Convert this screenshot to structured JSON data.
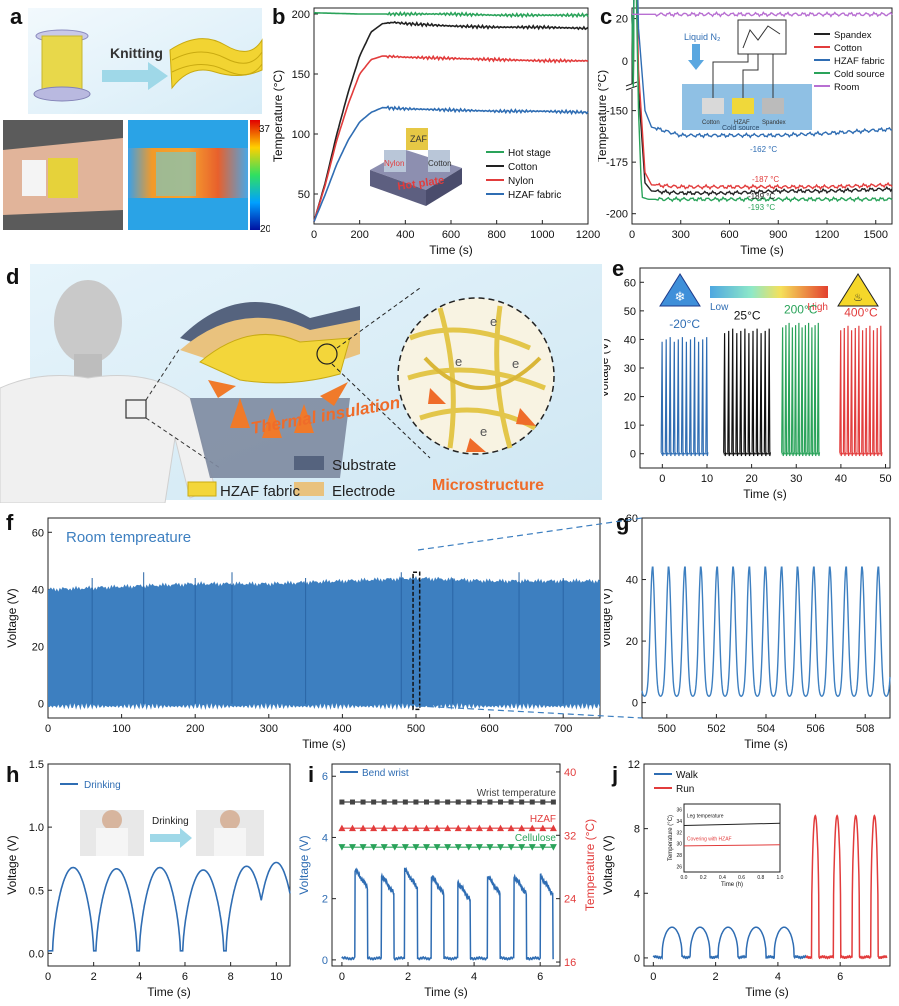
{
  "panels": {
    "a": "a",
    "b": "b",
    "c": "c",
    "d": "d",
    "e": "e",
    "f": "f",
    "g": "g",
    "h": "h",
    "i": "i",
    "j": "j"
  },
  "panel_a": {
    "arrow_label": "Knitting",
    "scale_max": "37",
    "scale_min": "20"
  },
  "panel_d": {
    "thermal_label": "Thermal  insulation",
    "substrate_label": "Substrate",
    "electrode_label": "Electrode",
    "fabric_label": "HZAF fabric",
    "micro_label": "Microstructure",
    "electron": "e"
  },
  "colors": {
    "blue": "#2f6db3",
    "black": "#222222",
    "red": "#e23c3c",
    "green": "#2aa35a",
    "purple": "#b86fd2",
    "dark_green": "#1f8a4c"
  },
  "chart_data": [
    {
      "id": "b",
      "type": "line",
      "xlabel": "Time (s)",
      "ylabel": "Temperature (°C)",
      "xlim": [
        0,
        1200
      ],
      "ylim": [
        25,
        205
      ],
      "xticks": [
        0,
        200,
        400,
        600,
        800,
        1000,
        1200
      ],
      "yticks": [
        50,
        100,
        150,
        200
      ],
      "legend": [
        "Hot stage",
        "Cotton",
        "Nylon",
        "HZAF fabric"
      ],
      "inset_labels": {
        "top": "ZAF",
        "left": "Nylon",
        "right": "Cotton",
        "bottom": "Hot plate"
      },
      "series": [
        {
          "name": "Hot stage",
          "color": "#2aa35a",
          "x": [
            0,
            200,
            400,
            600,
            800,
            1000,
            1200
          ],
          "y": [
            201,
            200,
            200,
            200,
            199,
            199,
            199
          ]
        },
        {
          "name": "Cotton",
          "color": "#222222",
          "x": [
            0,
            50,
            100,
            150,
            200,
            250,
            300,
            350,
            400,
            600,
            800,
            1000,
            1200
          ],
          "y": [
            27,
            60,
            100,
            135,
            165,
            185,
            192,
            193,
            192,
            190,
            189,
            189,
            188
          ]
        },
        {
          "name": "Nylon",
          "color": "#e23c3c",
          "x": [
            0,
            50,
            100,
            150,
            200,
            250,
            300,
            400,
            600,
            800,
            1000,
            1200
          ],
          "y": [
            27,
            58,
            95,
            125,
            150,
            162,
            165,
            164,
            163,
            162,
            161,
            161
          ]
        },
        {
          "name": "HZAF fabric",
          "color": "#2f6db3",
          "x": [
            0,
            50,
            100,
            150,
            200,
            250,
            300,
            400,
            600,
            800,
            1000,
            1200
          ],
          "y": [
            27,
            50,
            75,
            95,
            110,
            118,
            122,
            121,
            120,
            119,
            119,
            118
          ]
        }
      ]
    },
    {
      "id": "c",
      "type": "line",
      "xlabel": "Time (s)",
      "ylabel": "Temperature (°C)",
      "xlim": [
        0,
        1600
      ],
      "xticks": [
        0,
        300,
        600,
        900,
        1200,
        1500
      ],
      "yticks_upper": [
        0,
        20
      ],
      "yticks_lower": [
        -150,
        -175,
        -200
      ],
      "legend": [
        "Spandex",
        "Cotton",
        "HZAF fabric",
        "Cold source",
        "Room"
      ],
      "inset_labels": {
        "ln2": "Liquid N₂",
        "cotton": "Cotton",
        "hzaf": "HZAF",
        "spandex": "Spandex",
        "cold": "Cold source"
      },
      "annotations": [
        "-162 °C",
        "-187 °C",
        "-189 °C",
        "-193 °C"
      ],
      "series": [
        {
          "name": "Spandex",
          "color": "#222222",
          "x": [
            0,
            40,
            80,
            120,
            300,
            600,
            900,
            1200,
            1600
          ],
          "y": [
            22,
            -140,
            -185,
            -189,
            -190,
            -190,
            -189,
            -189,
            -188
          ]
        },
        {
          "name": "Cotton",
          "color": "#e23c3c",
          "x": [
            0,
            40,
            80,
            120,
            300,
            600,
            900,
            1200,
            1600
          ],
          "y": [
            22,
            -130,
            -180,
            -186,
            -187,
            -187,
            -187,
            -187,
            -186
          ]
        },
        {
          "name": "HZAF fabric",
          "color": "#2f6db3",
          "x": [
            0,
            40,
            80,
            120,
            300,
            600,
            900,
            1200,
            1600
          ],
          "y": [
            22,
            -110,
            -150,
            -158,
            -162,
            -162,
            -162,
            -161,
            -159
          ]
        },
        {
          "name": "Cold source",
          "color": "#2aa35a",
          "x": [
            0,
            40,
            60,
            100,
            300,
            600,
            900,
            1200,
            1600
          ],
          "y": [
            22,
            -150,
            -192,
            -193,
            -193,
            -193,
            -193,
            -193,
            -193
          ]
        },
        {
          "name": "Room",
          "color": "#b86fd2",
          "x": [
            0,
            300,
            600,
            900,
            1200,
            1600
          ],
          "y": [
            22,
            22,
            22,
            22,
            22,
            22
          ]
        }
      ]
    },
    {
      "id": "e",
      "type": "line",
      "xlabel": "Time (s)",
      "ylabel": "Voltage (V)",
      "xlim": [
        -5,
        51
      ],
      "ylim": [
        -5,
        65
      ],
      "xticks": [
        0,
        10,
        20,
        30,
        40,
        50
      ],
      "yticks": [
        0,
        10,
        20,
        30,
        40,
        50,
        60
      ],
      "gradient_labels": {
        "low": "Low",
        "high": "High"
      },
      "groups": [
        {
          "label": "-20°C",
          "color": "#2f6db3",
          "start": 0,
          "end": 10,
          "peak": 40,
          "count": 12
        },
        {
          "label": "25°C",
          "color": "#111111",
          "start": 14,
          "end": 24,
          "peak": 43,
          "count": 12
        },
        {
          "label": "200°C",
          "color": "#2aa35a",
          "start": 27,
          "end": 35,
          "peak": 45,
          "count": 12
        },
        {
          "label": "400°C",
          "color": "#e23c3c",
          "start": 40,
          "end": 49,
          "peak": 44,
          "count": 12
        }
      ]
    },
    {
      "id": "f",
      "type": "area",
      "xlabel": "Time (s)",
      "ylabel": "Voltage (V)",
      "xlim": [
        0,
        750
      ],
      "ylim": [
        -5,
        65
      ],
      "xticks": [
        0,
        100,
        200,
        300,
        400,
        500,
        600,
        700
      ],
      "yticks": [
        0,
        20,
        40,
        60
      ],
      "title": "Room tempreature",
      "envelope_x": [
        0,
        100,
        200,
        300,
        400,
        500,
        600,
        700,
        750
      ],
      "envelope_y": [
        40,
        41,
        42,
        42,
        43,
        44,
        43,
        43,
        43
      ]
    },
    {
      "id": "g",
      "type": "line",
      "xlabel": "Time (s)",
      "ylabel": "Voltage (V)",
      "xlim": [
        499,
        509
      ],
      "ylim": [
        -5,
        60
      ],
      "xticks": [
        500,
        502,
        504,
        506,
        508
      ],
      "yticks": [
        0,
        20,
        40,
        60
      ],
      "peak_period": 0.65,
      "peak_value": 44
    },
    {
      "id": "h",
      "type": "line",
      "xlabel": "Time (s)",
      "ylabel": "Voltage (V)",
      "xlim": [
        0,
        10.6
      ],
      "ylim": [
        -0.1,
        1.5
      ],
      "xticks": [
        0,
        2,
        4,
        6,
        8,
        10
      ],
      "yticks": [
        0.0,
        0.5,
        1.0,
        1.5
      ],
      "legend": [
        "Drinking"
      ],
      "arrow_label": "Drinking",
      "series": [
        {
          "name": "Drinking",
          "color": "#2f6db3",
          "peaks": [
            1.1,
            3.0,
            4.9,
            6.8,
            8.7,
            10.0
          ],
          "peak_values": [
            0.68,
            0.67,
            0.68,
            0.66,
            0.69,
            0.72
          ]
        }
      ]
    },
    {
      "id": "i",
      "type": "line",
      "xlabel": "Time (s)",
      "ylabel_left": "Voltage (V)",
      "ylabel_right": "Temperature (°C)",
      "xlim": [
        -0.3,
        6.6
      ],
      "ylim_left": [
        -0.2,
        6.4
      ],
      "ylim_right": [
        15.5,
        41
      ],
      "xticks": [
        0,
        2,
        4,
        6
      ],
      "yticks_left": [
        0,
        2,
        4,
        6
      ],
      "yticks_right": [
        16,
        24,
        32,
        40
      ],
      "legend": [
        "Bend wrist"
      ],
      "temp_series": [
        {
          "name": "Wrist temperature",
          "color": "#444444",
          "marker": "square",
          "value": 36.2
        },
        {
          "name": "HZAF",
          "color": "#e23c3c",
          "marker": "triangle",
          "value": 32.9
        },
        {
          "name": "Cellulose",
          "color": "#2aa35a",
          "marker": "triangle-down",
          "value": 30.5
        }
      ],
      "pulses": [
        0.5,
        1.3,
        2.0,
        2.8,
        3.6,
        4.5,
        5.3,
        6.1
      ],
      "pulse_values": [
        2.8,
        2.6,
        2.8,
        2.6,
        2.4,
        2.6,
        2.6,
        2.6
      ]
    },
    {
      "id": "j",
      "type": "line",
      "xlabel": "Time (s)",
      "ylabel": "Voltage (V)",
      "xlim": [
        -0.3,
        7.6
      ],
      "ylim": [
        -0.5,
        12
      ],
      "xticks": [
        0,
        2,
        4,
        6
      ],
      "yticks": [
        0,
        4,
        8,
        12
      ],
      "legend": [
        "Walk",
        "Run"
      ],
      "inset": {
        "xlabel": "Time (h)",
        "ylabel": "Temperature (°C)",
        "xticks": [
          0.0,
          0.2,
          0.4,
          0.6,
          0.8,
          1.0
        ],
        "yticks": [
          26,
          28,
          30,
          32,
          34,
          36
        ],
        "label_top": "Leg temperature",
        "label_bottom": "Covering with HZAF"
      },
      "walk": {
        "color": "#2f6db3",
        "peaks": [
          0.6,
          1.5,
          2.4,
          3.3,
          4.2
        ],
        "value": 1.9
      },
      "run": {
        "color": "#e23c3c",
        "peaks": [
          5.2,
          5.9,
          6.5,
          7.1
        ],
        "value": 8.8
      }
    }
  ]
}
